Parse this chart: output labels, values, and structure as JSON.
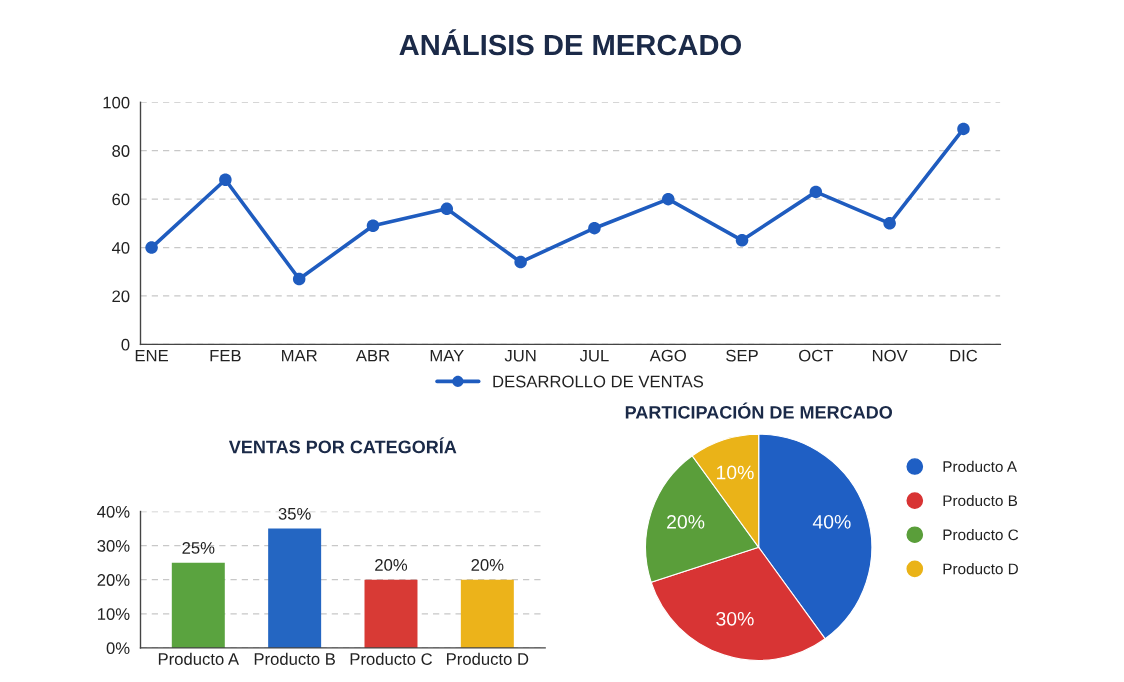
{
  "chart_data": [
    {
      "type": "line",
      "title": "ANÁLISIS DE MERCADO",
      "categories": [
        "ENE",
        "FEB",
        "MAR",
        "ABR",
        "MAY",
        "JUN",
        "JUL",
        "AGO",
        "SEP",
        "OCT",
        "NOV",
        "DIC"
      ],
      "series": [
        {
          "name": "DESARROLLO DE VENTAS",
          "color": "#1f5cbf",
          "values": [
            40,
            68,
            27,
            49,
            56,
            34,
            48,
            60,
            43,
            63,
            50,
            89
          ]
        }
      ],
      "ylim": [
        0,
        100
      ],
      "yticks": [
        0,
        20,
        40,
        60,
        80,
        100
      ],
      "grid": "y",
      "legend": "bottom",
      "marker": "circle",
      "line_style": "solid"
    },
    {
      "type": "bar",
      "title": "VENTAS POR CATEGORÍA",
      "categories": [
        "Producto A",
        "Producto B",
        "Producto C",
        "Producto D"
      ],
      "values": [
        25,
        35,
        20,
        20
      ],
      "colors": [
        "#5aa33f",
        "#2466c2",
        "#d83a35",
        "#ecb31a"
      ],
      "value_labels": [
        "25%",
        "35%",
        "20%",
        "20%"
      ],
      "ylim": [
        0,
        40
      ],
      "yticks": [
        {
          "value": 0,
          "label": "0%"
        },
        {
          "value": 10,
          "label": "10%"
        },
        {
          "value": 20,
          "label": "20%"
        },
        {
          "value": 30,
          "label": "30%"
        },
        {
          "value": 40,
          "label": "40%"
        }
      ],
      "grid": "y"
    },
    {
      "type": "pie",
      "title": "PARTICIPACIÓN DE MERCADO",
      "categories": [
        "Producto A",
        "Producto B",
        "Producto C",
        "Producto D"
      ],
      "values": [
        40,
        30,
        20,
        10
      ],
      "colors": [
        "#1f5fc4",
        "#d83434",
        "#5a9e3a",
        "#eab318"
      ],
      "value_labels": [
        "40%",
        "30%",
        "20%",
        "10%"
      ],
      "legend": "right"
    }
  ]
}
